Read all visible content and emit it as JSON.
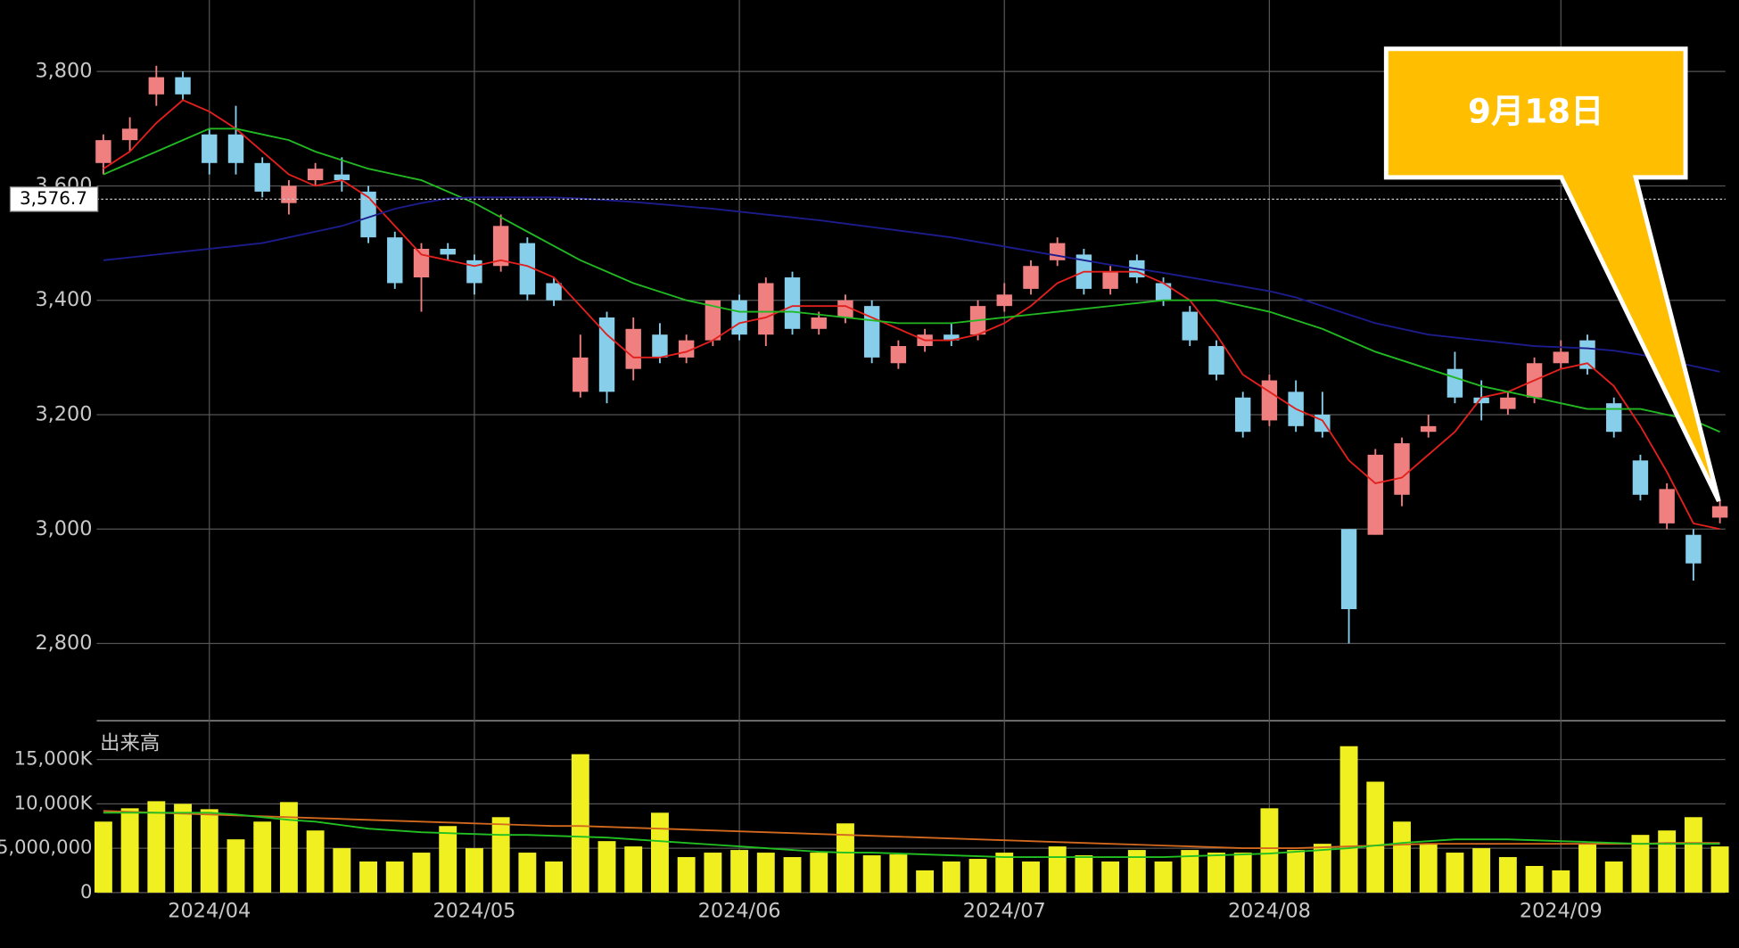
{
  "chart_data": [
    {
      "type": "candlestick",
      "open": [
        3640,
        3680,
        3760,
        3790,
        3690,
        3690,
        3640,
        3570,
        3610,
        3620,
        3590,
        3510,
        3440,
        3490,
        3470,
        3460,
        3500,
        3430,
        3240,
        3370,
        3280,
        3340,
        3300,
        3330,
        3400,
        3340,
        3440,
        3350,
        3370,
        3390,
        3290,
        3320,
        3340,
        3340,
        3390,
        3420,
        3470,
        3480,
        3420,
        3470,
        3430,
        3380,
        3320,
        3230,
        3190,
        3240,
        3200,
        3000,
        2990,
        3060,
        3170,
        3280,
        3230,
        3210,
        3230,
        3290,
        3330,
        3220,
        3120,
        3010,
        2990,
        3020
      ],
      "high": [
        3690,
        3720,
        3810,
        3800,
        3700,
        3740,
        3650,
        3610,
        3640,
        3650,
        3600,
        3520,
        3500,
        3500,
        3480,
        3550,
        3510,
        3440,
        3340,
        3380,
        3370,
        3360,
        3340,
        3400,
        3410,
        3440,
        3450,
        3380,
        3410,
        3400,
        3330,
        3350,
        3360,
        3400,
        3430,
        3470,
        3510,
        3490,
        3460,
        3480,
        3440,
        3390,
        3330,
        3240,
        3270,
        3260,
        3240,
        3000,
        3140,
        3160,
        3200,
        3310,
        3260,
        3240,
        3300,
        3330,
        3340,
        3230,
        3130,
        3080,
        3000,
        3050
      ],
      "low": [
        3620,
        3660,
        3740,
        3750,
        3620,
        3620,
        3580,
        3550,
        3600,
        3590,
        3500,
        3420,
        3380,
        3470,
        3410,
        3450,
        3400,
        3390,
        3230,
        3220,
        3260,
        3290,
        3290,
        3320,
        3330,
        3320,
        3340,
        3340,
        3360,
        3290,
        3280,
        3310,
        3320,
        3330,
        3380,
        3410,
        3460,
        3410,
        3410,
        3430,
        3390,
        3320,
        3260,
        3160,
        3180,
        3170,
        3160,
        2800,
        2990,
        3040,
        3160,
        3220,
        3190,
        3200,
        3220,
        3280,
        3270,
        3160,
        3050,
        3000,
        2910,
        3010
      ],
      "close": [
        3680,
        3700,
        3790,
        3760,
        3640,
        3640,
        3590,
        3600,
        3630,
        3610,
        3510,
        3430,
        3490,
        3480,
        3430,
        3530,
        3410,
        3400,
        3300,
        3240,
        3350,
        3300,
        3330,
        3400,
        3340,
        3430,
        3350,
        3370,
        3400,
        3300,
        3320,
        3340,
        3330,
        3390,
        3410,
        3460,
        3500,
        3420,
        3450,
        3440,
        3400,
        3330,
        3270,
        3170,
        3260,
        3180,
        3170,
        2860,
        3130,
        3150,
        3180,
        3230,
        3220,
        3230,
        3290,
        3310,
        3280,
        3170,
        3060,
        3070,
        2940,
        3040
      ],
      "up_color": "#f08080",
      "down_color": "#87ceeb",
      "series": [
        {
          "color": "#e0201c",
          "values": [
            3630,
            3660,
            3710,
            3750,
            3730,
            3700,
            3660,
            3620,
            3600,
            3610,
            3580,
            3530,
            3480,
            3470,
            3460,
            3470,
            3460,
            3440,
            3390,
            3340,
            3300,
            3300,
            3310,
            3330,
            3360,
            3370,
            3390,
            3390,
            3390,
            3370,
            3350,
            3330,
            3330,
            3340,
            3360,
            3390,
            3430,
            3450,
            3450,
            3450,
            3430,
            3400,
            3340,
            3270,
            3240,
            3210,
            3190,
            3120,
            3080,
            3090,
            3130,
            3170,
            3230,
            3240,
            3260,
            3280,
            3290,
            3250,
            3180,
            3100,
            3010,
            3000
          ]
        },
        {
          "color": "#22b822",
          "values": [
            3620,
            3640,
            3660,
            3680,
            3700,
            3700,
            3690,
            3680,
            3660,
            3645,
            3630,
            3620,
            3610,
            3590,
            3570,
            3545,
            3520,
            3495,
            3470,
            3450,
            3430,
            3415,
            3400,
            3390,
            3380,
            3380,
            3380,
            3375,
            3370,
            3365,
            3360,
            3360,
            3360,
            3365,
            3370,
            3375,
            3380,
            3385,
            3390,
            3395,
            3400,
            3400,
            3400,
            3390,
            3380,
            3365,
            3350,
            3330,
            3310,
            3295,
            3280,
            3265,
            3250,
            3240,
            3230,
            3220,
            3210,
            3210,
            3210,
            3200,
            3190,
            3170
          ]
        },
        {
          "color": "#1c1c8c",
          "values": [
            3470,
            3475,
            3480,
            3485,
            3490,
            3495,
            3500,
            3510,
            3520,
            3530,
            3545,
            3560,
            3570,
            3578,
            3580,
            3580,
            3580,
            3580,
            3578,
            3575,
            3572,
            3568,
            3564,
            3560,
            3555,
            3550,
            3545,
            3540,
            3534,
            3528,
            3522,
            3516,
            3510,
            3502,
            3494,
            3486,
            3478,
            3470,
            3462,
            3455,
            3448,
            3440,
            3432,
            3424,
            3416,
            3405,
            3390,
            3375,
            3360,
            3350,
            3340,
            3335,
            3330,
            3325,
            3320,
            3318,
            3316,
            3312,
            3305,
            3295,
            3285,
            3275
          ]
        }
      ],
      "ylim": [
        2665,
        3925
      ],
      "yticks": [
        {
          "value": 2800,
          "label": "2,800"
        },
        {
          "value": 3000,
          "label": "3,000"
        },
        {
          "value": 3200,
          "label": "3,200"
        },
        {
          "value": 3400,
          "label": "3,400"
        },
        {
          "value": 3600,
          "label": "3,600"
        },
        {
          "value": 3800,
          "label": "3,800"
        }
      ],
      "grid": true,
      "price_marker": {
        "value": 3576.7,
        "label": "3,576.7"
      },
      "annotation": "9月18日"
    },
    {
      "type": "bar",
      "title": "出来高",
      "categories": [
        null,
        null,
        null,
        null,
        "2024/04",
        null,
        null,
        null,
        null,
        null,
        null,
        null,
        null,
        null,
        "2024/05",
        null,
        null,
        null,
        null,
        null,
        null,
        null,
        null,
        null,
        "2024/06",
        null,
        null,
        null,
        null,
        null,
        null,
        null,
        null,
        null,
        "2024/07",
        null,
        null,
        null,
        null,
        null,
        null,
        null,
        null,
        null,
        "2024/08",
        null,
        null,
        null,
        null,
        null,
        null,
        null,
        null,
        null,
        null,
        "2024/09",
        null,
        null,
        null,
        null,
        null,
        null
      ],
      "values": [
        8000000,
        9500000,
        10300000,
        10000000,
        9400000,
        6000000,
        8000000,
        10200000,
        7000000,
        5000000,
        3500000,
        3500000,
        4500000,
        7500000,
        5000000,
        8500000,
        4500000,
        3500000,
        15600000,
        5800000,
        5200000,
        9000000,
        4000000,
        4500000,
        4800000,
        4500000,
        4000000,
        4500000,
        7800000,
        4200000,
        4300000,
        2500000,
        3500000,
        3800000,
        4500000,
        3500000,
        5200000,
        4200000,
        3500000,
        4800000,
        3500000,
        4800000,
        4500000,
        4500000,
        9500000,
        4800000,
        5500000,
        16500000,
        12500000,
        8000000,
        5500000,
        4500000,
        5000000,
        4000000,
        3000000,
        2500000,
        5500000,
        3500000,
        6500000,
        7000000,
        8500000,
        5200000
      ],
      "color": "#f0f020",
      "series": [
        {
          "color": "#d2691e",
          "values": [
            9200000,
            9100000,
            9000000,
            8900000,
            8800000,
            8700000,
            8600000,
            8500000,
            8400000,
            8300000,
            8200000,
            8100000,
            8000000,
            7900000,
            7800000,
            7700000,
            7600000,
            7500000,
            7500000,
            7400000,
            7300000,
            7200000,
            7100000,
            7000000,
            6900000,
            6800000,
            6700000,
            6600000,
            6500000,
            6400000,
            6300000,
            6200000,
            6100000,
            6000000,
            5900000,
            5800000,
            5700000,
            5600000,
            5500000,
            5400000,
            5300000,
            5200000,
            5100000,
            5000000,
            5000000,
            5000000,
            5100000,
            5200000,
            5300000,
            5400000,
            5500000,
            5500000,
            5500000,
            5500000,
            5500000,
            5500000,
            5500000,
            5500000,
            5500000,
            5600000,
            5600000,
            5600000
          ]
        },
        {
          "color": "#22c022",
          "values": [
            9000000,
            9000000,
            9000000,
            9000000,
            9000000,
            8800000,
            8500000,
            8200000,
            8000000,
            7600000,
            7200000,
            7000000,
            6800000,
            6700000,
            6600000,
            6500000,
            6500000,
            6400000,
            6300000,
            6200000,
            6000000,
            5800000,
            5600000,
            5400000,
            5200000,
            5000000,
            4800000,
            4600000,
            4500000,
            4500000,
            4400000,
            4300000,
            4200000,
            4100000,
            4000000,
            4000000,
            4000000,
            4000000,
            4000000,
            4000000,
            4000000,
            4100000,
            4200000,
            4300000,
            4400000,
            4600000,
            4800000,
            5000000,
            5300000,
            5600000,
            5800000,
            6000000,
            6000000,
            6000000,
            5900000,
            5800000,
            5700000,
            5600000,
            5500000,
            5500000,
            5500000,
            5500000
          ]
        }
      ],
      "ylim": [
        0,
        19375000
      ],
      "yticks": [
        0,
        {
          "value": 5000000,
          "label": "5,000,000"
        },
        {
          "value": 10000000,
          "label": "10,000K"
        },
        {
          "value": 15000000,
          "label": "15,000K"
        }
      ]
    }
  ]
}
